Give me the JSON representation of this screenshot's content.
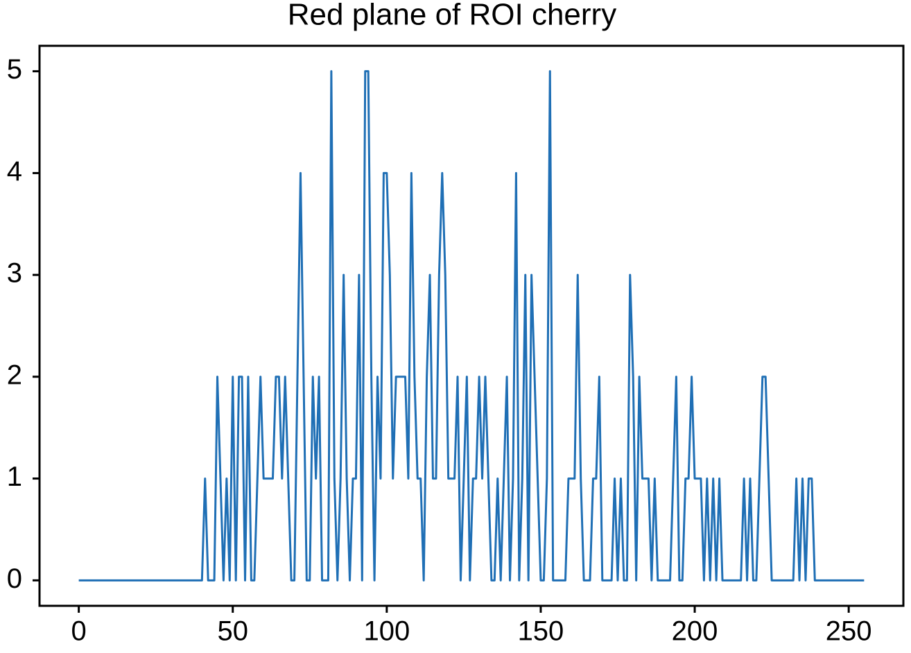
{
  "chart_data": {
    "type": "line",
    "title": "Red plane of ROI cherry",
    "x": [
      0,
      1,
      2,
      3,
      4,
      5,
      6,
      7,
      8,
      9,
      10,
      11,
      12,
      13,
      14,
      15,
      16,
      17,
      18,
      19,
      20,
      21,
      22,
      23,
      24,
      25,
      26,
      27,
      28,
      29,
      30,
      31,
      32,
      33,
      34,
      35,
      36,
      37,
      38,
      39,
      40,
      41,
      42,
      43,
      44,
      45,
      46,
      47,
      48,
      49,
      50,
      51,
      52,
      53,
      54,
      55,
      56,
      57,
      58,
      59,
      60,
      61,
      62,
      63,
      64,
      65,
      66,
      67,
      68,
      69,
      70,
      71,
      72,
      73,
      74,
      75,
      76,
      77,
      78,
      79,
      80,
      81,
      82,
      83,
      84,
      85,
      86,
      87,
      88,
      89,
      90,
      91,
      92,
      93,
      94,
      95,
      96,
      97,
      98,
      99,
      100,
      101,
      102,
      103,
      104,
      105,
      106,
      107,
      108,
      109,
      110,
      111,
      112,
      113,
      114,
      115,
      116,
      117,
      118,
      119,
      120,
      121,
      122,
      123,
      124,
      125,
      126,
      127,
      128,
      129,
      130,
      131,
      132,
      133,
      134,
      135,
      136,
      137,
      138,
      139,
      140,
      141,
      142,
      143,
      144,
      145,
      146,
      147,
      148,
      149,
      150,
      151,
      152,
      153,
      154,
      155,
      156,
      157,
      158,
      159,
      160,
      161,
      162,
      163,
      164,
      165,
      166,
      167,
      168,
      169,
      170,
      171,
      172,
      173,
      174,
      175,
      176,
      177,
      178,
      179,
      180,
      181,
      182,
      183,
      184,
      185,
      186,
      187,
      188,
      189,
      190,
      191,
      192,
      193,
      194,
      195,
      196,
      197,
      198,
      199,
      200,
      201,
      202,
      203,
      204,
      205,
      206,
      207,
      208,
      209,
      210,
      211,
      212,
      213,
      214,
      215,
      216,
      217,
      218,
      219,
      220,
      221,
      222,
      223,
      224,
      225,
      226,
      227,
      228,
      229,
      230,
      231,
      232,
      233,
      234,
      235,
      236,
      237,
      238,
      239,
      240,
      241,
      242,
      243,
      244,
      245,
      246,
      247,
      248,
      249,
      250,
      251,
      252,
      253,
      254,
      255
    ],
    "series": [
      {
        "color": "#1f6fb5",
        "values": [
          0,
          0,
          0,
          0,
          0,
          0,
          0,
          0,
          0,
          0,
          0,
          0,
          0,
          0,
          0,
          0,
          0,
          0,
          0,
          0,
          0,
          0,
          0,
          0,
          0,
          0,
          0,
          0,
          0,
          0,
          0,
          0,
          0,
          0,
          0,
          0,
          0,
          0,
          0,
          0,
          0,
          1,
          0,
          0,
          0,
          2,
          1,
          0,
          1,
          0,
          2,
          0,
          2,
          2,
          0,
          2,
          0,
          0,
          1,
          2,
          1,
          1,
          1,
          1,
          2,
          2,
          1,
          2,
          1,
          0,
          0,
          2,
          4,
          2,
          0,
          0,
          2,
          1,
          2,
          0,
          0,
          0,
          5,
          1,
          0,
          1,
          3,
          1,
          0,
          1,
          1,
          3,
          0,
          5,
          5,
          2,
          0,
          2,
          1,
          4,
          4,
          3,
          1,
          2,
          2,
          2,
          2,
          1,
          4,
          2,
          1,
          1,
          0,
          2,
          3,
          1,
          1,
          3,
          4,
          3,
          1,
          1,
          1,
          2,
          0,
          1,
          2,
          0,
          1,
          1,
          2,
          1,
          2,
          1,
          0,
          0,
          1,
          0,
          1,
          2,
          0,
          1,
          4,
          0,
          1,
          3,
          0,
          3,
          2,
          1,
          0,
          0,
          1,
          5,
          0,
          0,
          0,
          0,
          0,
          1,
          1,
          1,
          3,
          1,
          0,
          0,
          0,
          1,
          1,
          2,
          0,
          0,
          0,
          0,
          1,
          0,
          1,
          0,
          0,
          3,
          2,
          0,
          2,
          1,
          1,
          1,
          0,
          1,
          0,
          0,
          0,
          0,
          0,
          1,
          2,
          0,
          0,
          1,
          1,
          2,
          1,
          1,
          1,
          0,
          1,
          0,
          1,
          0,
          1,
          0,
          0,
          0,
          0,
          0,
          0,
          0,
          1,
          0,
          1,
          0,
          0,
          1,
          2,
          2,
          1,
          0,
          0,
          0,
          0,
          0,
          0,
          0,
          0,
          1,
          0,
          1,
          0,
          1,
          1,
          0,
          0,
          0,
          0,
          0,
          0,
          0,
          0,
          0,
          0,
          0,
          0,
          0,
          0,
          0,
          0,
          0
        ]
      }
    ],
    "xlim": [
      -12.75,
      267.75
    ],
    "xticks": [
      0,
      50,
      100,
      150,
      200,
      250
    ],
    "ylim": [
      -0.25,
      5.25
    ],
    "yticks": [
      0,
      1,
      2,
      3,
      4,
      5
    ],
    "grid": false
  }
}
